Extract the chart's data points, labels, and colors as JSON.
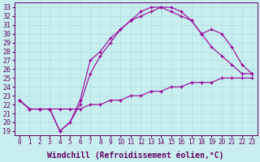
{
  "xlabel": "Windchill (Refroidissement éolien,°C)",
  "bg_color": "#c8eef0",
  "grid_color": "#aadde0",
  "line_color": "#990099",
  "text_color": "#660066",
  "xlim": [
    -0.5,
    23.5
  ],
  "ylim": [
    18.5,
    33.5
  ],
  "xticks": [
    0,
    1,
    2,
    3,
    4,
    5,
    6,
    7,
    8,
    9,
    10,
    11,
    12,
    13,
    14,
    15,
    16,
    17,
    18,
    19,
    20,
    21,
    22,
    23
  ],
  "yticks": [
    19,
    20,
    21,
    22,
    23,
    24,
    25,
    26,
    27,
    28,
    29,
    30,
    31,
    32,
    33
  ],
  "line1_x": [
    0,
    1,
    2,
    3,
    4,
    5,
    6,
    7,
    8,
    9,
    10,
    11,
    12,
    13,
    14,
    15,
    16,
    17,
    18,
    19,
    20,
    21,
    22,
    23
  ],
  "line1_y": [
    22.5,
    21.5,
    21.5,
    21.5,
    21.5,
    21.5,
    21.5,
    22.0,
    22.0,
    22.5,
    22.5,
    23.0,
    23.0,
    23.5,
    23.5,
    24.0,
    24.0,
    24.5,
    24.5,
    24.5,
    25.0,
    25.0,
    25.0,
    25.0
  ],
  "line2_x": [
    0,
    1,
    2,
    3,
    4,
    5,
    6,
    7,
    8,
    9,
    10,
    11,
    12,
    13,
    14,
    15,
    16,
    17,
    18,
    19,
    20,
    21,
    22,
    23
  ],
  "line2_y": [
    22.5,
    21.5,
    21.5,
    21.5,
    19.0,
    20.0,
    22.0,
    25.5,
    27.5,
    29.0,
    30.5,
    31.5,
    32.5,
    33.0,
    33.0,
    33.0,
    32.5,
    31.5,
    30.0,
    28.5,
    27.5,
    26.5,
    25.5,
    25.5
  ],
  "line3_x": [
    0,
    1,
    2,
    3,
    4,
    5,
    6,
    7,
    8,
    9,
    10,
    11,
    12,
    13,
    14,
    15,
    16,
    17,
    18,
    19,
    20,
    21,
    22,
    23
  ],
  "line3_y": [
    22.5,
    21.5,
    21.5,
    21.5,
    19.0,
    20.0,
    22.5,
    27.0,
    28.0,
    29.5,
    30.5,
    31.5,
    32.0,
    32.5,
    33.0,
    32.5,
    32.0,
    31.5,
    30.0,
    30.5,
    30.0,
    28.5,
    26.5,
    25.5
  ],
  "xlabel_fontsize": 7,
  "ytick_fontsize": 6,
  "xtick_fontsize": 5.5
}
